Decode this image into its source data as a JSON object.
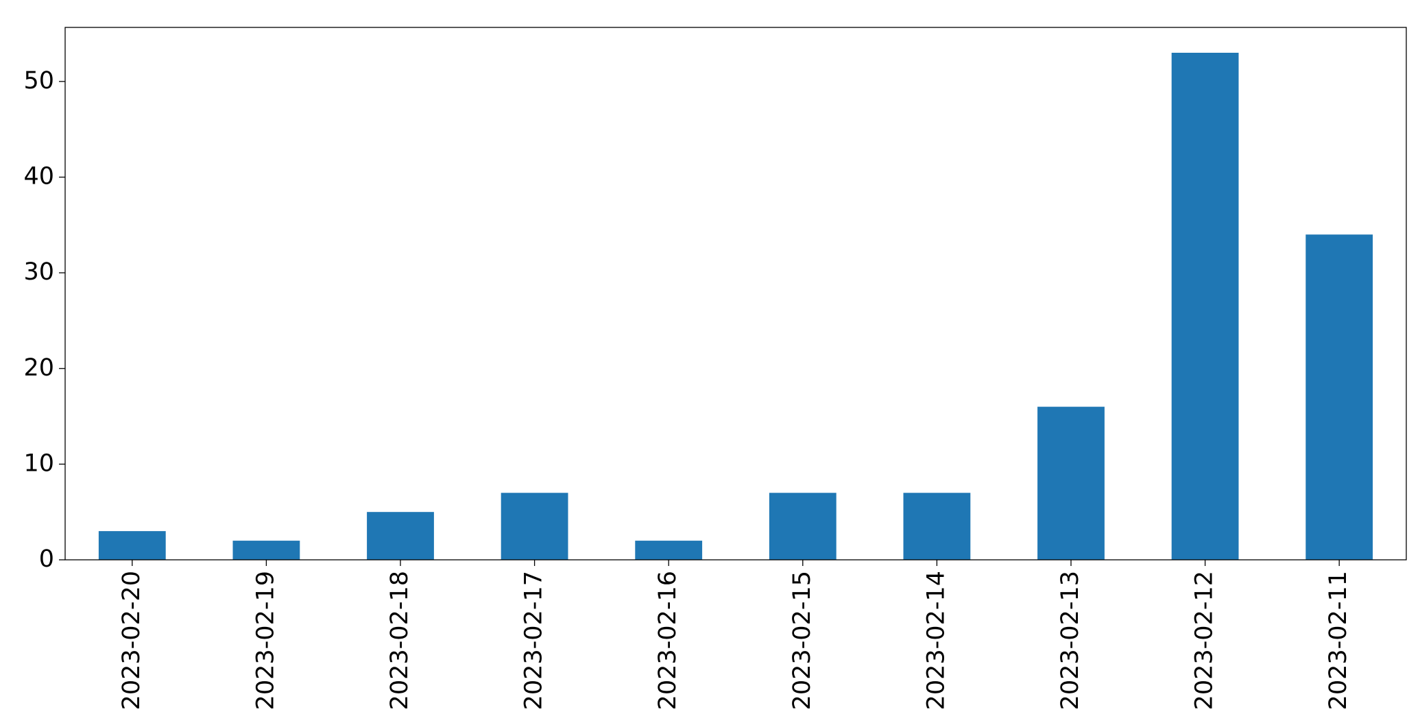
{
  "chart_data": {
    "type": "bar",
    "categories": [
      "2023-02-20",
      "2023-02-19",
      "2023-02-18",
      "2023-02-17",
      "2023-02-16",
      "2023-02-15",
      "2023-02-14",
      "2023-02-13",
      "2023-02-12",
      "2023-02-11"
    ],
    "values": [
      3,
      2,
      5,
      7,
      2,
      7,
      7,
      16,
      53,
      34
    ],
    "color": "#1f77b4",
    "ylim": [
      0,
      55.65
    ],
    "yticks": [
      0,
      10,
      20,
      30,
      40,
      50
    ],
    "grid": false
  }
}
